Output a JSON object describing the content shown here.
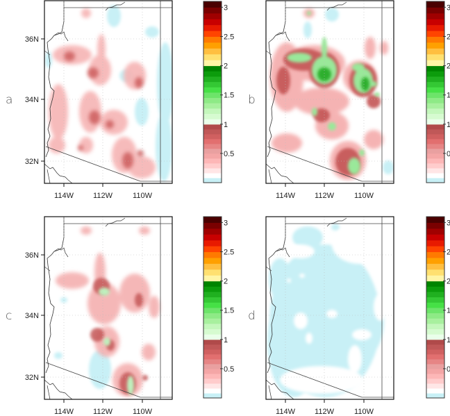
{
  "figure": {
    "panels": [
      {
        "id": "a",
        "label": "a"
      },
      {
        "id": "b",
        "label": "b"
      },
      {
        "id": "c",
        "label": "c"
      },
      {
        "id": "d",
        "label": "d"
      }
    ],
    "x_ticks": [
      "114W",
      "112W",
      "110W"
    ],
    "y_ticks": [
      "36N",
      "34N",
      "32N"
    ],
    "colorbar": {
      "tick_labels": [
        "3",
        "2.5",
        "2",
        "1.5",
        "1",
        "0.5"
      ],
      "colors": [
        "#c8f0f6",
        "#ffffff",
        "#ffe6e6",
        "#ffcccc",
        "#fdb7b7",
        "#f4a6a6",
        "#e9a0a0",
        "#e68585",
        "#e26f6f",
        "#d06060",
        "#c05858",
        "#b04a4a",
        "#eaffea",
        "#d6fbd0",
        "#c4f7bc",
        "#a8f09e",
        "#8eea86",
        "#6de46a",
        "#46e046",
        "#34c834",
        "#20b020",
        "#0c9c0c",
        "#008400",
        "#fff5a5",
        "#ffe070",
        "#ffbf40",
        "#ffa000",
        "#ff7a00",
        "#ff4400",
        "#e81a00",
        "#c80000",
        "#a00000",
        "#7a0000",
        "#4a0000"
      ]
    }
  },
  "chart_data": [
    {
      "type": "heatmap",
      "panel": "a",
      "title": "",
      "xlabel": "",
      "ylabel": "",
      "x_ticks": [
        "114W",
        "112W",
        "110W"
      ],
      "y_ticks": [
        "36N",
        "34N",
        "32N"
      ],
      "xlim": [
        "115W",
        "108.8W"
      ],
      "ylim": [
        "31.3N",
        "37N"
      ],
      "colorbar_range": [
        0,
        3.1
      ],
      "colorbar_ticks": [
        0.5,
        1,
        1.5,
        2,
        2.5,
        3
      ],
      "description": "Mostly values 0.1-1 (pink/red) along central Arizona ridge; max ~0.9-1 near 112.5W 35N and 110W 31.8N; light cyan (<0.1) patches in east near 109W and NE"
    },
    {
      "type": "heatmap",
      "panel": "b",
      "x_ticks": [
        "114W",
        "112W",
        "110W"
      ],
      "y_ticks": [
        "36N",
        "34N",
        "32N"
      ],
      "colorbar_range": [
        0,
        3.1
      ],
      "colorbar_ticks": [
        0.5,
        1,
        1.5,
        2,
        2.5,
        3
      ],
      "description": "Broader red region with green (1-2) patches: large near 112.3W 35N (up to ~1.9), 110W 34.7N (~1.9), small patches near 112W 33.3N, 111.6W 32.9N, 110.4W 31.7N"
    },
    {
      "type": "heatmap",
      "panel": "c",
      "x_ticks": [
        "114W",
        "112W",
        "110W"
      ],
      "y_ticks": [
        "36N",
        "34N",
        "32N"
      ],
      "colorbar_range": [
        0,
        3.1
      ],
      "colorbar_ticks": [
        0.5,
        1,
        1.5,
        2,
        2.5,
        3
      ],
      "description": "Similar to a with slightly higher values; small green (1-1.2) patches near 112.2W 35N, 111.9W 33.3N, 110.4W 31.8N; cyan patch near 112.8W 32N"
    },
    {
      "type": "heatmap",
      "panel": "d",
      "x_ticks": [
        "114W",
        "112W",
        "110W"
      ],
      "y_ticks": [
        "36N",
        "34N",
        "32N"
      ],
      "colorbar_range": [
        0,
        3.1
      ],
      "colorbar_ticks": [
        0.5,
        1,
        1.5,
        2,
        2.5,
        3
      ],
      "description": "Nearly the entire state in light cyan (0-0.1) with scattered white (0.1-0.2) gaps"
    }
  ]
}
